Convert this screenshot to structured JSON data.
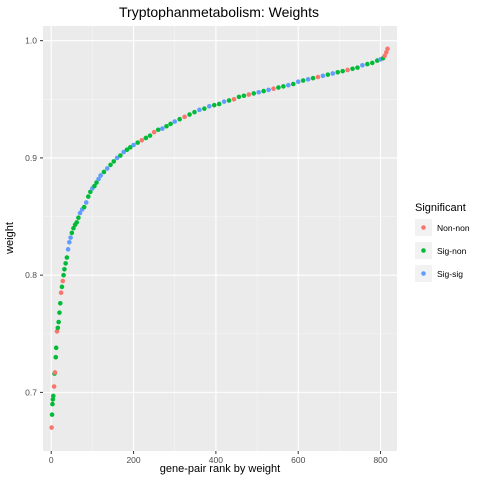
{
  "chart_data": {
    "type": "scatter",
    "title": "Tryptophanmetabolism: Weights",
    "xlabel": "gene-pair rank by weight",
    "ylabel": "weight",
    "xlim": [
      -20,
      840
    ],
    "ylim": [
      0.65,
      1.0125
    ],
    "x_ticks": [
      0,
      200,
      400,
      600,
      800
    ],
    "x_tick_labels": [
      "0",
      "200",
      "400",
      "600",
      "800"
    ],
    "y_ticks": [
      0.7,
      0.8,
      0.9,
      1.0
    ],
    "y_tick_labels": [
      "0.7",
      "0.8",
      "0.9",
      "1.0"
    ],
    "grid": true,
    "legend": {
      "title": "Significant",
      "position": "right",
      "entries": [
        {
          "label": "Non-non",
          "color": "#F8766D"
        },
        {
          "label": "Sig-non",
          "color": "#00BA38"
        },
        {
          "label": "Sig-sig",
          "color": "#619CFF"
        }
      ]
    },
    "points": [
      {
        "x": 1,
        "y": 0.67,
        "group": "Non-non"
      },
      {
        "x": 2,
        "y": 0.681,
        "group": "Sig-non"
      },
      {
        "x": 3,
        "y": 0.69,
        "group": "Sig-non"
      },
      {
        "x": 4,
        "y": 0.694,
        "group": "Sig-non"
      },
      {
        "x": 5,
        "y": 0.697,
        "group": "Sig-non"
      },
      {
        "x": 7,
        "y": 0.705,
        "group": "Non-non"
      },
      {
        "x": 8,
        "y": 0.716,
        "group": "Sig-non"
      },
      {
        "x": 9,
        "y": 0.717,
        "group": "Non-non"
      },
      {
        "x": 11,
        "y": 0.73,
        "group": "Sig-non"
      },
      {
        "x": 12,
        "y": 0.738,
        "group": "Sig-non"
      },
      {
        "x": 14,
        "y": 0.752,
        "group": "Non-non"
      },
      {
        "x": 16,
        "y": 0.755,
        "group": "Sig-non"
      },
      {
        "x": 18,
        "y": 0.76,
        "group": "Sig-non"
      },
      {
        "x": 20,
        "y": 0.768,
        "group": "Sig-non"
      },
      {
        "x": 22,
        "y": 0.776,
        "group": "Sig-non"
      },
      {
        "x": 24,
        "y": 0.785,
        "group": "Non-non"
      },
      {
        "x": 26,
        "y": 0.79,
        "group": "Sig-non"
      },
      {
        "x": 28,
        "y": 0.795,
        "group": "Non-non"
      },
      {
        "x": 30,
        "y": 0.8,
        "group": "Sig-non"
      },
      {
        "x": 32,
        "y": 0.805,
        "group": "Sig-non"
      },
      {
        "x": 35,
        "y": 0.81,
        "group": "Sig-non"
      },
      {
        "x": 38,
        "y": 0.815,
        "group": "Sig-non"
      },
      {
        "x": 41,
        "y": 0.822,
        "group": "Sig-sig"
      },
      {
        "x": 44,
        "y": 0.828,
        "group": "Sig-sig"
      },
      {
        "x": 47,
        "y": 0.832,
        "group": "Sig-sig"
      },
      {
        "x": 50,
        "y": 0.836,
        "group": "Sig-non"
      },
      {
        "x": 54,
        "y": 0.84,
        "group": "Sig-non"
      },
      {
        "x": 58,
        "y": 0.843,
        "group": "Sig-non"
      },
      {
        "x": 62,
        "y": 0.845,
        "group": "Sig-non"
      },
      {
        "x": 66,
        "y": 0.849,
        "group": "Sig-non"
      },
      {
        "x": 70,
        "y": 0.853,
        "group": "Sig-sig"
      },
      {
        "x": 75,
        "y": 0.856,
        "group": "Sig-sig"
      },
      {
        "x": 80,
        "y": 0.858,
        "group": "Sig-non"
      },
      {
        "x": 85,
        "y": 0.862,
        "group": "Sig-sig"
      },
      {
        "x": 90,
        "y": 0.867,
        "group": "Sig-non"
      },
      {
        "x": 95,
        "y": 0.871,
        "group": "Sig-non"
      },
      {
        "x": 100,
        "y": 0.874,
        "group": "Sig-sig"
      },
      {
        "x": 105,
        "y": 0.876,
        "group": "Sig-non"
      },
      {
        "x": 110,
        "y": 0.879,
        "group": "Sig-non"
      },
      {
        "x": 115,
        "y": 0.882,
        "group": "Sig-sig"
      },
      {
        "x": 120,
        "y": 0.885,
        "group": "Sig-sig"
      },
      {
        "x": 128,
        "y": 0.888,
        "group": "Sig-non"
      },
      {
        "x": 136,
        "y": 0.891,
        "group": "Sig-sig"
      },
      {
        "x": 144,
        "y": 0.894,
        "group": "Sig-non"
      },
      {
        "x": 152,
        "y": 0.897,
        "group": "Sig-non"
      },
      {
        "x": 160,
        "y": 0.9,
        "group": "Sig-sig"
      },
      {
        "x": 168,
        "y": 0.902,
        "group": "Sig-non"
      },
      {
        "x": 176,
        "y": 0.905,
        "group": "Sig-sig"
      },
      {
        "x": 184,
        "y": 0.907,
        "group": "Sig-non"
      },
      {
        "x": 192,
        "y": 0.909,
        "group": "Sig-non"
      },
      {
        "x": 200,
        "y": 0.911,
        "group": "Sig-sig"
      },
      {
        "x": 210,
        "y": 0.913,
        "group": "Sig-non"
      },
      {
        "x": 220,
        "y": 0.915,
        "group": "Non-non"
      },
      {
        "x": 230,
        "y": 0.917,
        "group": "Sig-non"
      },
      {
        "x": 240,
        "y": 0.919,
        "group": "Sig-non"
      },
      {
        "x": 250,
        "y": 0.922,
        "group": "Non-non"
      },
      {
        "x": 260,
        "y": 0.924,
        "group": "Sig-non"
      },
      {
        "x": 270,
        "y": 0.925,
        "group": "Sig-sig"
      },
      {
        "x": 280,
        "y": 0.927,
        "group": "Sig-non"
      },
      {
        "x": 290,
        "y": 0.929,
        "group": "Sig-non"
      },
      {
        "x": 300,
        "y": 0.931,
        "group": "Sig-sig"
      },
      {
        "x": 312,
        "y": 0.933,
        "group": "Sig-non"
      },
      {
        "x": 324,
        "y": 0.935,
        "group": "Non-non"
      },
      {
        "x": 336,
        "y": 0.937,
        "group": "Sig-non"
      },
      {
        "x": 348,
        "y": 0.939,
        "group": "Sig-non"
      },
      {
        "x": 360,
        "y": 0.941,
        "group": "Sig-sig"
      },
      {
        "x": 372,
        "y": 0.942,
        "group": "Sig-non"
      },
      {
        "x": 384,
        "y": 0.944,
        "group": "Sig-sig"
      },
      {
        "x": 396,
        "y": 0.945,
        "group": "Sig-non"
      },
      {
        "x": 408,
        "y": 0.946,
        "group": "Sig-non"
      },
      {
        "x": 420,
        "y": 0.948,
        "group": "Sig-sig"
      },
      {
        "x": 432,
        "y": 0.949,
        "group": "Sig-non"
      },
      {
        "x": 444,
        "y": 0.95,
        "group": "Non-non"
      },
      {
        "x": 456,
        "y": 0.952,
        "group": "Sig-non"
      },
      {
        "x": 468,
        "y": 0.953,
        "group": "Sig-non"
      },
      {
        "x": 480,
        "y": 0.954,
        "group": "Non-non"
      },
      {
        "x": 492,
        "y": 0.955,
        "group": "Sig-non"
      },
      {
        "x": 504,
        "y": 0.956,
        "group": "Sig-sig"
      },
      {
        "x": 516,
        "y": 0.957,
        "group": "Sig-non"
      },
      {
        "x": 528,
        "y": 0.958,
        "group": "Sig-sig"
      },
      {
        "x": 540,
        "y": 0.959,
        "group": "Non-non"
      },
      {
        "x": 552,
        "y": 0.96,
        "group": "Sig-non"
      },
      {
        "x": 564,
        "y": 0.961,
        "group": "Sig-non"
      },
      {
        "x": 576,
        "y": 0.962,
        "group": "Sig-sig"
      },
      {
        "x": 588,
        "y": 0.963,
        "group": "Sig-non"
      },
      {
        "x": 600,
        "y": 0.965,
        "group": "Sig-sig"
      },
      {
        "x": 612,
        "y": 0.966,
        "group": "Sig-non"
      },
      {
        "x": 624,
        "y": 0.967,
        "group": "Sig-sig"
      },
      {
        "x": 636,
        "y": 0.968,
        "group": "Sig-non"
      },
      {
        "x": 648,
        "y": 0.969,
        "group": "Non-non"
      },
      {
        "x": 660,
        "y": 0.97,
        "group": "Sig-sig"
      },
      {
        "x": 672,
        "y": 0.971,
        "group": "Sig-non"
      },
      {
        "x": 684,
        "y": 0.972,
        "group": "Sig-sig"
      },
      {
        "x": 696,
        "y": 0.973,
        "group": "Sig-non"
      },
      {
        "x": 708,
        "y": 0.974,
        "group": "Sig-non"
      },
      {
        "x": 720,
        "y": 0.975,
        "group": "Non-non"
      },
      {
        "x": 732,
        "y": 0.976,
        "group": "Sig-non"
      },
      {
        "x": 744,
        "y": 0.977,
        "group": "Sig-non"
      },
      {
        "x": 756,
        "y": 0.979,
        "group": "Sig-sig"
      },
      {
        "x": 768,
        "y": 0.98,
        "group": "Sig-non"
      },
      {
        "x": 780,
        "y": 0.981,
        "group": "Sig-non"
      },
      {
        "x": 792,
        "y": 0.983,
        "group": "Sig-non"
      },
      {
        "x": 800,
        "y": 0.984,
        "group": "Sig-sig"
      },
      {
        "x": 806,
        "y": 0.985,
        "group": "Sig-non"
      },
      {
        "x": 810,
        "y": 0.987,
        "group": "Non-non"
      },
      {
        "x": 814,
        "y": 0.99,
        "group": "Non-non"
      },
      {
        "x": 817,
        "y": 0.993,
        "group": "Non-non"
      }
    ]
  }
}
